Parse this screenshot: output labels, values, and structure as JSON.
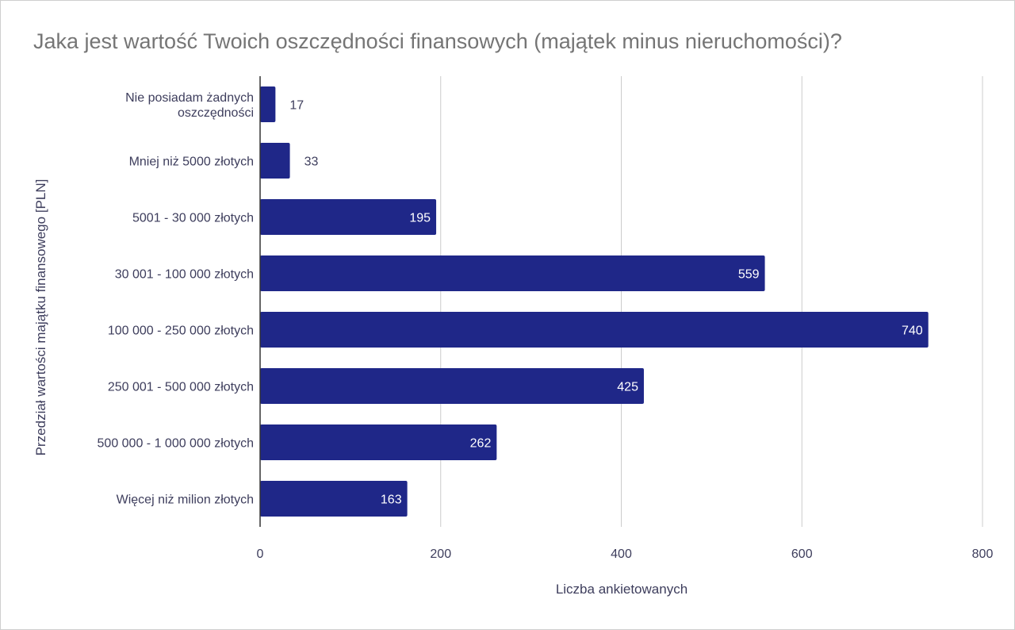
{
  "chart_data": {
    "type": "bar",
    "orientation": "horizontal",
    "title": "Jaka jest wartość Twoich oszczędności finansowych (majątek minus nieruchomości)?",
    "xlabel": "Liczba ankietowanych",
    "ylabel": "Przedział wartości majątku finansowego [PLN]",
    "categories": [
      [
        "Nie posiadam żadnych",
        "oszczędności"
      ],
      [
        "Mniej niż 5000 złotych"
      ],
      [
        "5001 - 30 000 złotych"
      ],
      [
        "30 001 - 100 000 złotych"
      ],
      [
        "100 000 - 250 000 złotych"
      ],
      [
        "250 001 - 500 000 złotych"
      ],
      [
        "500 000 - 1 000 000 złotych"
      ],
      [
        "Więcej niż milion złotych"
      ]
    ],
    "values": [
      17,
      33,
      195,
      559,
      740,
      425,
      262,
      163
    ],
    "xlim": [
      0,
      800
    ],
    "xticks": [
      0,
      200,
      400,
      600,
      800
    ],
    "grid": true,
    "legend": "none",
    "bar_color": "#1f2788",
    "label_inside_color": "#ffffff",
    "label_outside_color": "#3d3d5c"
  }
}
